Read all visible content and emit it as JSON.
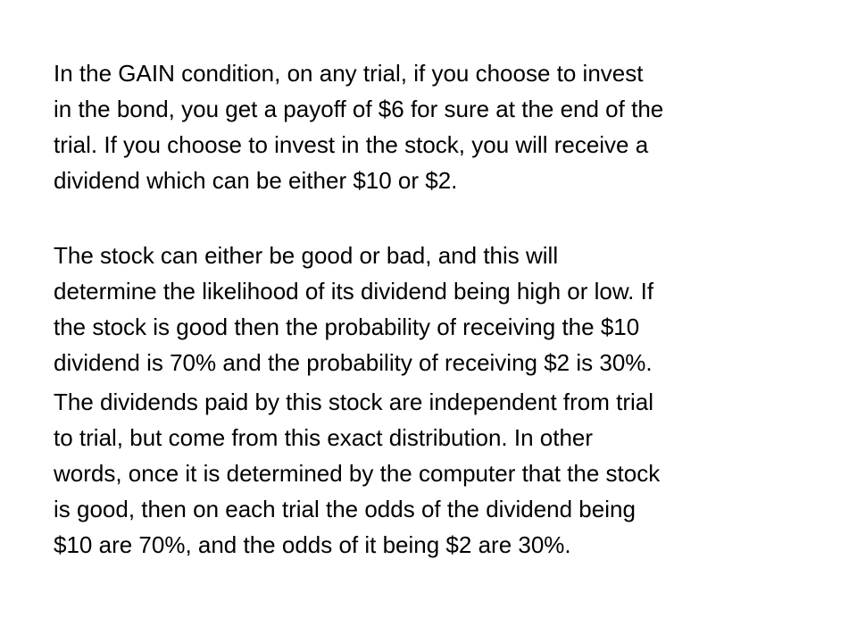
{
  "paragraphs": [
    {
      "lines": [
        "In the GAIN condition, on any trial, if you choose to invest",
        "in the bond, you get a payoff of $6 for sure at the end of the",
        "trial. If you choose to invest in the stock, you will receive a",
        "dividend which can be either $10 or $2."
      ]
    },
    {
      "lines": [
        "The stock can either be good or bad, and this will",
        "determine the likelihood of its dividend being high or low. If",
        "the stock is good then the probability of receiving the $10",
        "dividend is 70% and the probability of receiving $2 is 30%."
      ]
    },
    {
      "lines": [
        "The dividends paid by this stock are independent from trial",
        "to trial, but come from this exact distribution. In other",
        "words, once it is determined by the computer that the stock",
        "is good, then on each trial the odds of the dividend being",
        "$10 are 70%, and the odds of it being $2 are 30%."
      ]
    }
  ]
}
